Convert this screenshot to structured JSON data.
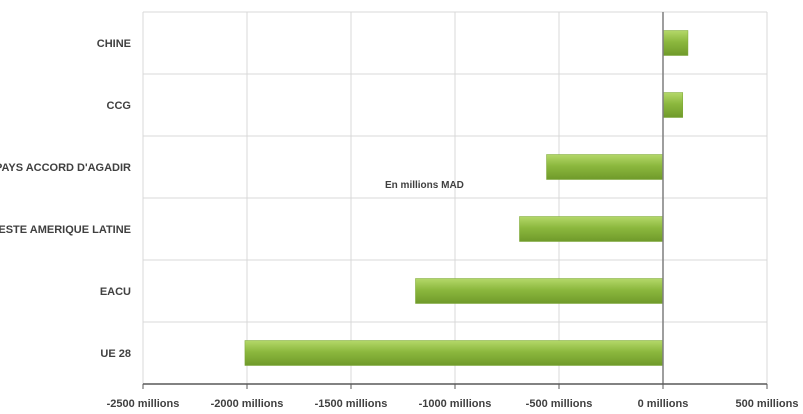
{
  "chart_data": {
    "type": "bar",
    "orientation": "horizontal",
    "categories": [
      "CHINE",
      "CCG",
      "PAYS ACCORD D'AGADIR",
      "RESTE AMERIQUE LATINE",
      "EACU",
      "UE 28"
    ],
    "values": [
      120,
      95,
      -560,
      -690,
      -1190,
      -2010
    ],
    "xlim": [
      -2500,
      500
    ],
    "xticks": [
      {
        "value": -2500,
        "label": "-2500 millions"
      },
      {
        "value": -2000,
        "label": "-2000 millions"
      },
      {
        "value": -1500,
        "label": "-1500 millions"
      },
      {
        "value": -1000,
        "label": "-1000 millions"
      },
      {
        "value": -500,
        "label": "-500 millions"
      },
      {
        "value": 0,
        "label": "0 millions"
      },
      {
        "value": 500,
        "label": "500 millions"
      }
    ],
    "annotation": "En millions MAD",
    "bar_color": "#8cb83e",
    "bar_highlight": "#a9d05a",
    "grid": true,
    "legend": "none"
  }
}
